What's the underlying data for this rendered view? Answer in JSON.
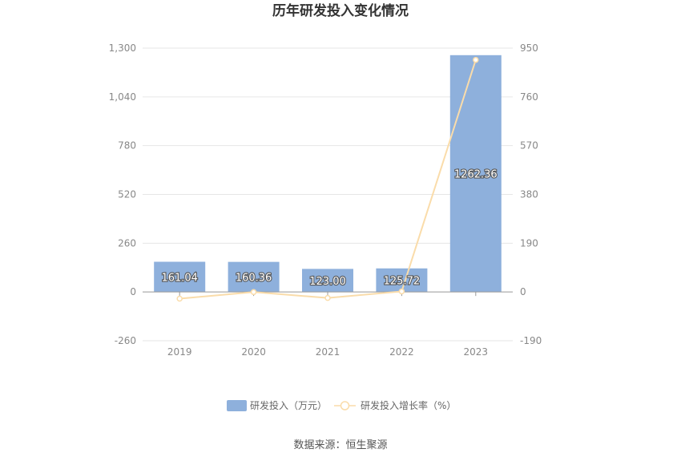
{
  "chart_data": {
    "type": "bar",
    "title": "历年研发投入变化情况",
    "categories": [
      "2019",
      "2020",
      "2021",
      "2022",
      "2023"
    ],
    "series": [
      {
        "name": "研发投入（万元）",
        "type": "bar",
        "axis": "left",
        "values": [
          161.04,
          160.36,
          123.0,
          125.72,
          1262.36
        ],
        "labels": [
          "161.04",
          "160.36",
          "123.00",
          "125.72",
          "1262.36"
        ]
      },
      {
        "name": "研发投入增长率（%）",
        "type": "line",
        "axis": "right",
        "values": [
          -26,
          -0.4,
          -23.3,
          2.2,
          904.1
        ]
      }
    ],
    "y_left": {
      "min": -260,
      "max": 1300,
      "ticks": [
        "1,300",
        "1,040",
        "780",
        "520",
        "260",
        "0",
        "-260"
      ],
      "tick_values": [
        1300,
        1040,
        780,
        520,
        260,
        0,
        -260
      ]
    },
    "y_right": {
      "min": -190,
      "max": 950,
      "ticks": [
        "950",
        "760",
        "570",
        "380",
        "190",
        "0",
        "-190"
      ],
      "tick_values": [
        950,
        760,
        570,
        380,
        190,
        0,
        -190
      ]
    },
    "grid": true,
    "legend_position": "bottom-center",
    "colors": {
      "bar": "#8eb0dc",
      "line": "#fadcaa",
      "grid": "#e6e6e6",
      "axis": "#999999"
    }
  },
  "footer": {
    "source": "数据来源：恒生聚源"
  }
}
